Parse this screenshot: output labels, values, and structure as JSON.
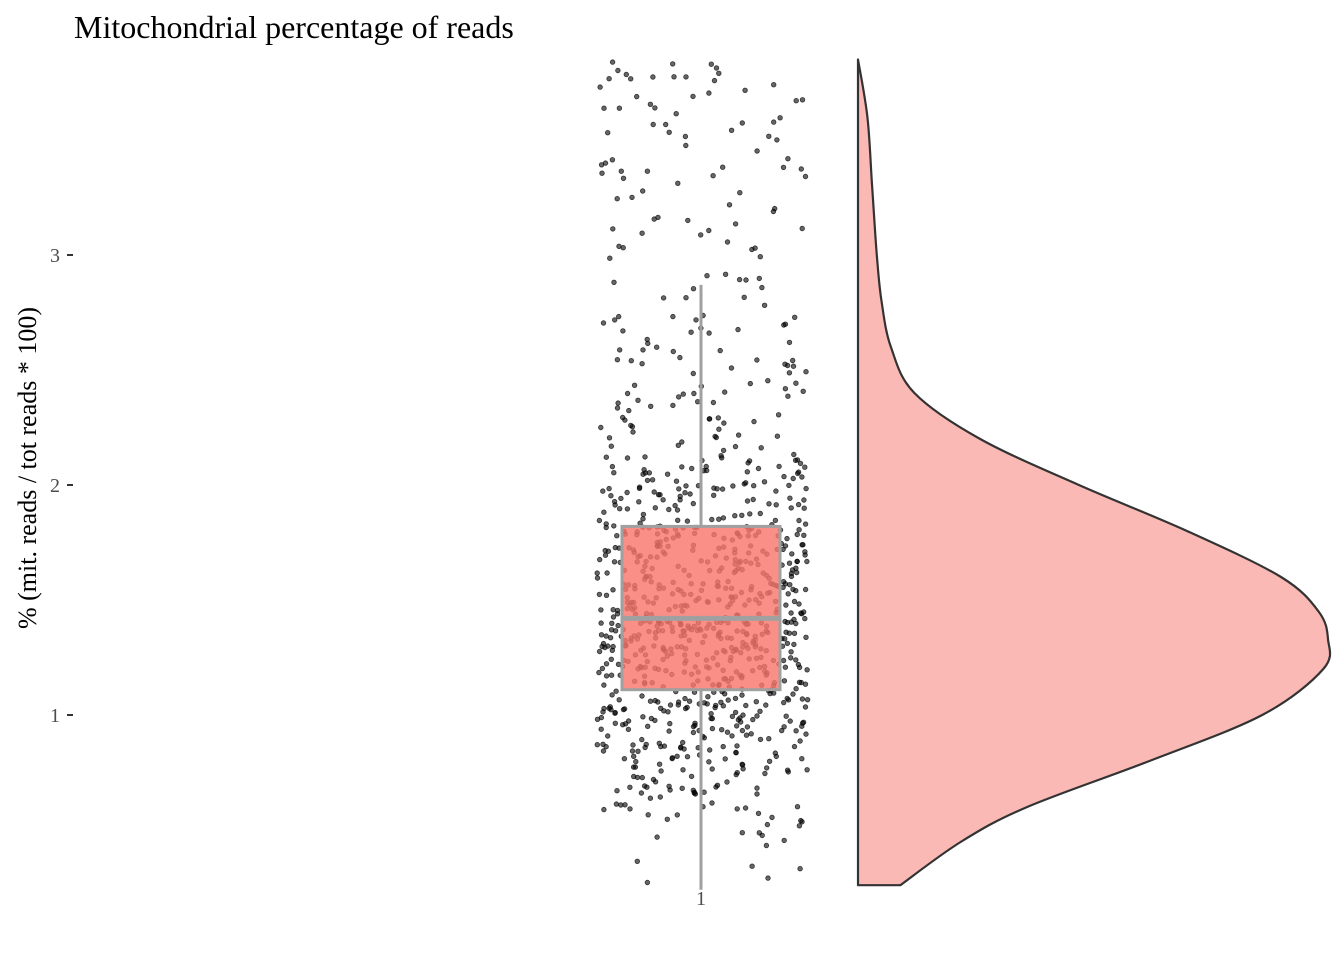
{
  "chart_data": {
    "type": "raincloud",
    "title": "Mitochondrial percentage of reads",
    "xlabel": "",
    "ylabel": "% (mit. reads / tot reads * 100)",
    "categories": [
      "1"
    ],
    "y_ticks": [
      1,
      2,
      3
    ],
    "ylim": [
      0.22,
      3.85
    ],
    "grid": false,
    "legend": "none",
    "colors": {
      "box_fill": "#F8766D",
      "box_line": "#A0A0A0",
      "density_fill": "#FBB9B5",
      "density_line": "#333333",
      "points": "#000000"
    },
    "box": {
      "category": "1",
      "q1": 1.11,
      "median": 1.42,
      "q3": 1.82,
      "whisker_low": 0.24,
      "whisker_high": 2.87
    },
    "density": {
      "y": [
        0.26,
        0.45,
        0.6,
        0.8,
        1.0,
        1.2,
        1.33,
        1.45,
        1.6,
        1.8,
        2.0,
        2.2,
        2.4,
        2.6,
        2.8,
        3.0,
        3.3,
        3.6,
        3.85
      ],
      "density": [
        0.09,
        0.22,
        0.36,
        0.62,
        0.86,
        0.99,
        1.0,
        0.98,
        0.9,
        0.7,
        0.47,
        0.26,
        0.12,
        0.07,
        0.05,
        0.04,
        0.03,
        0.02,
        0.0
      ]
    },
    "points": {
      "category": "1",
      "n": 950,
      "y_range": [
        0.27,
        3.85
      ],
      "mode": 1.35
    }
  }
}
